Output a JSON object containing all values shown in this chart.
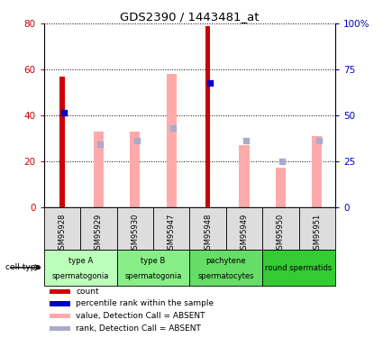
{
  "title": "GDS2390 / 1443481_at",
  "samples": [
    "GSM95928",
    "GSM95929",
    "GSM95930",
    "GSM95947",
    "GSM95948",
    "GSM95949",
    "GSM95950",
    "GSM95951"
  ],
  "count_values": [
    57,
    0,
    0,
    0,
    79,
    0,
    0,
    0
  ],
  "percentile_values": [
    41,
    0,
    0,
    0,
    54,
    0,
    0,
    0
  ],
  "value_absent": [
    0,
    33,
    33,
    58,
    0,
    27,
    17,
    31
  ],
  "rank_absent": [
    0,
    34,
    36,
    43,
    0,
    36,
    25,
    36
  ],
  "count_color": "#cc0000",
  "percentile_color": "#0000cc",
  "value_absent_color": "#ffaaaa",
  "rank_absent_color": "#aaaacc",
  "group_labels": [
    "type A\nspermatogonia",
    "type B\nspermatogonia",
    "pachytene\nspermatocytes",
    "round spermatids"
  ],
  "group_colors": [
    "#bbffbb",
    "#88ee88",
    "#66dd66",
    "#33cc33"
  ],
  "ylim_left": [
    0,
    80
  ],
  "ylim_right": [
    0,
    100
  ],
  "yticks_left": [
    0,
    20,
    40,
    60,
    80
  ],
  "yticks_right": [
    0,
    25,
    50,
    75,
    100
  ],
  "yticklabels_right": [
    "0",
    "25",
    "50",
    "75",
    "100%"
  ],
  "tick_color_left": "#cc0000",
  "tick_color_right": "#0000cc",
  "bg_color": "#dddddd"
}
